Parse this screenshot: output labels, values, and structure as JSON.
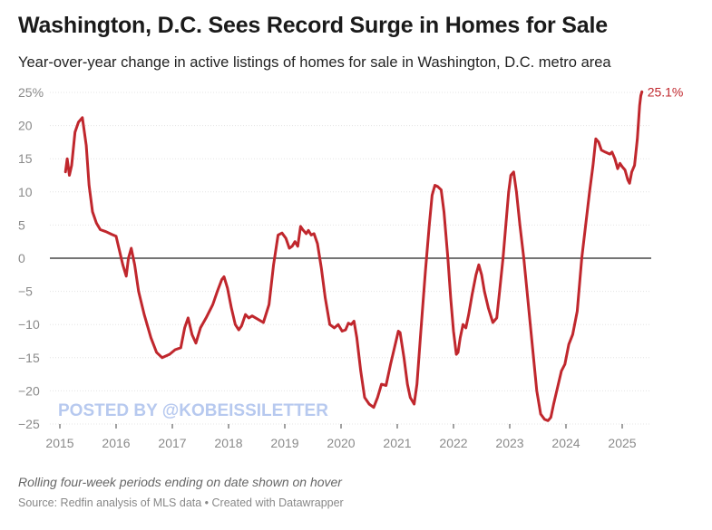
{
  "chart_data": {
    "type": "line",
    "title": "Washington, D.C. Sees Record Surge in Homes for Sale",
    "subtitle": "Year-over-year change in active listings of homes for sale in Washington, D.C. metro area",
    "note": "Rolling four-week periods ending on date shown on hover",
    "source": "Source: Redfin analysis of MLS data • Created with Datawrapper",
    "watermark": "POSTED BY @KOBEISSILETTER",
    "end_label": "25.1%",
    "line_color": "#c0272d",
    "xlim": [
      2014.95,
      2025.85
    ],
    "ylim": [
      -25,
      25
    ],
    "y_ticks": [
      {
        "value": 25,
        "label": "25%"
      },
      {
        "value": 20,
        "label": "20"
      },
      {
        "value": 15,
        "label": "15"
      },
      {
        "value": 10,
        "label": "10"
      },
      {
        "value": 5,
        "label": "5"
      },
      {
        "value": 0,
        "label": "0"
      },
      {
        "value": -5,
        "label": "−5"
      },
      {
        "value": -10,
        "label": "−10"
      },
      {
        "value": -15,
        "label": "−15"
      },
      {
        "value": -20,
        "label": "−20"
      },
      {
        "value": -25,
        "label": "−25"
      }
    ],
    "x_ticks": [
      {
        "value": 2015,
        "label": "2015"
      },
      {
        "value": 2016,
        "label": "2016"
      },
      {
        "value": 2017,
        "label": "2017"
      },
      {
        "value": 2018,
        "label": "2018"
      },
      {
        "value": 2019,
        "label": "2019"
      },
      {
        "value": 2020,
        "label": "2020"
      },
      {
        "value": 2021,
        "label": "2021"
      },
      {
        "value": 2022,
        "label": "2022"
      },
      {
        "value": 2023,
        "label": "2023"
      },
      {
        "value": 2024,
        "label": "2024"
      },
      {
        "value": 2025,
        "label": "2025"
      }
    ],
    "series": [
      {
        "name": "YoY change in active listings",
        "points": [
          [
            2015.1,
            13
          ],
          [
            2015.13,
            15
          ],
          [
            2015.17,
            12.5
          ],
          [
            2015.21,
            14
          ],
          [
            2015.27,
            19
          ],
          [
            2015.33,
            20.5
          ],
          [
            2015.4,
            21.2
          ],
          [
            2015.47,
            17
          ],
          [
            2015.52,
            11
          ],
          [
            2015.58,
            7
          ],
          [
            2015.65,
            5.3
          ],
          [
            2015.72,
            4.3
          ],
          [
            2015.82,
            4
          ],
          [
            2015.92,
            3.6
          ],
          [
            2016.0,
            3.3
          ],
          [
            2016.05,
            1.5
          ],
          [
            2016.12,
            -1
          ],
          [
            2016.18,
            -2.7
          ],
          [
            2016.22,
            0
          ],
          [
            2016.27,
            1.5
          ],
          [
            2016.33,
            -1
          ],
          [
            2016.4,
            -5
          ],
          [
            2016.5,
            -8.5
          ],
          [
            2016.62,
            -12
          ],
          [
            2016.72,
            -14.2
          ],
          [
            2016.82,
            -15
          ],
          [
            2016.95,
            -14.5
          ],
          [
            2017.05,
            -13.8
          ],
          [
            2017.15,
            -13.5
          ],
          [
            2017.22,
            -10.5
          ],
          [
            2017.28,
            -9
          ],
          [
            2017.35,
            -11.5
          ],
          [
            2017.42,
            -12.8
          ],
          [
            2017.5,
            -10.5
          ],
          [
            2017.6,
            -9
          ],
          [
            2017.72,
            -7
          ],
          [
            2017.8,
            -5
          ],
          [
            2017.88,
            -3.2
          ],
          [
            2017.92,
            -2.8
          ],
          [
            2017.98,
            -4.5
          ],
          [
            2018.05,
            -7.5
          ],
          [
            2018.12,
            -10
          ],
          [
            2018.18,
            -10.8
          ],
          [
            2018.23,
            -10.2
          ],
          [
            2018.3,
            -8.5
          ],
          [
            2018.36,
            -9
          ],
          [
            2018.42,
            -8.7
          ],
          [
            2018.52,
            -9.2
          ],
          [
            2018.62,
            -9.7
          ],
          [
            2018.72,
            -7
          ],
          [
            2018.8,
            -1
          ],
          [
            2018.88,
            3.5
          ],
          [
            2018.95,
            3.8
          ],
          [
            2019.02,
            3
          ],
          [
            2019.08,
            1.5
          ],
          [
            2019.13,
            1.8
          ],
          [
            2019.18,
            2.5
          ],
          [
            2019.23,
            1.8
          ],
          [
            2019.28,
            4.8
          ],
          [
            2019.32,
            4.3
          ],
          [
            2019.38,
            3.7
          ],
          [
            2019.42,
            4.2
          ],
          [
            2019.47,
            3.5
          ],
          [
            2019.52,
            3.7
          ],
          [
            2019.58,
            2.2
          ],
          [
            2019.65,
            -1.5
          ],
          [
            2019.72,
            -6
          ],
          [
            2019.8,
            -10
          ],
          [
            2019.88,
            -10.5
          ],
          [
            2019.95,
            -10
          ],
          [
            2020.02,
            -11
          ],
          [
            2020.08,
            -10.8
          ],
          [
            2020.13,
            -9.8
          ],
          [
            2020.18,
            -10
          ],
          [
            2020.23,
            -9.5
          ],
          [
            2020.28,
            -12
          ],
          [
            2020.35,
            -17
          ],
          [
            2020.42,
            -21
          ],
          [
            2020.5,
            -22
          ],
          [
            2020.58,
            -22.5
          ],
          [
            2020.65,
            -21
          ],
          [
            2020.72,
            -19
          ],
          [
            2020.8,
            -19.2
          ],
          [
            2020.88,
            -16
          ],
          [
            2020.95,
            -13.5
          ],
          [
            2021.02,
            -11
          ],
          [
            2021.05,
            -11.2
          ],
          [
            2021.12,
            -15
          ],
          [
            2021.18,
            -19
          ],
          [
            2021.23,
            -21
          ],
          [
            2021.3,
            -22
          ],
          [
            2021.35,
            -19
          ],
          [
            2021.42,
            -11
          ],
          [
            2021.5,
            -2
          ],
          [
            2021.57,
            5
          ],
          [
            2021.62,
            9.5
          ],
          [
            2021.67,
            11
          ],
          [
            2021.72,
            10.8
          ],
          [
            2021.78,
            10.3
          ],
          [
            2021.83,
            7
          ],
          [
            2021.9,
            0
          ],
          [
            2021.95,
            -6
          ],
          [
            2022.0,
            -11
          ],
          [
            2022.05,
            -14.5
          ],
          [
            2022.08,
            -14.2
          ],
          [
            2022.12,
            -12
          ],
          [
            2022.17,
            -10
          ],
          [
            2022.22,
            -10.5
          ],
          [
            2022.27,
            -8.5
          ],
          [
            2022.33,
            -5.5
          ],
          [
            2022.4,
            -2.5
          ],
          [
            2022.45,
            -1
          ],
          [
            2022.5,
            -2.5
          ],
          [
            2022.55,
            -5
          ],
          [
            2022.62,
            -7.5
          ],
          [
            2022.7,
            -9.7
          ],
          [
            2022.77,
            -9
          ],
          [
            2022.82,
            -5
          ],
          [
            2022.88,
            0
          ],
          [
            2022.93,
            5
          ],
          [
            2022.98,
            10
          ],
          [
            2023.02,
            12.5
          ],
          [
            2023.07,
            13
          ],
          [
            2023.12,
            10
          ],
          [
            2023.18,
            5
          ],
          [
            2023.25,
            0
          ],
          [
            2023.32,
            -6
          ],
          [
            2023.4,
            -13
          ],
          [
            2023.48,
            -20
          ],
          [
            2023.55,
            -23.5
          ],
          [
            2023.62,
            -24.3
          ],
          [
            2023.68,
            -24.5
          ],
          [
            2023.73,
            -24
          ],
          [
            2023.78,
            -22
          ],
          [
            2023.85,
            -19.5
          ],
          [
            2023.92,
            -17
          ],
          [
            2023.98,
            -16
          ],
          [
            2024.05,
            -13
          ],
          [
            2024.12,
            -11.5
          ],
          [
            2024.2,
            -8
          ],
          [
            2024.28,
            0
          ],
          [
            2024.35,
            5
          ],
          [
            2024.42,
            10
          ],
          [
            2024.48,
            14
          ],
          [
            2024.53,
            18
          ],
          [
            2024.58,
            17.5
          ],
          [
            2024.63,
            16.3
          ],
          [
            2024.7,
            16
          ],
          [
            2024.78,
            15.7
          ],
          [
            2024.82,
            16
          ],
          [
            2024.87,
            15
          ],
          [
            2024.92,
            13.5
          ],
          [
            2024.96,
            14.3
          ],
          [
            2025.0,
            13.8
          ],
          [
            2025.05,
            13.3
          ],
          [
            2025.1,
            11.8
          ],
          [
            2025.13,
            11.3
          ],
          [
            2025.17,
            13
          ],
          [
            2025.22,
            14
          ],
          [
            2025.27,
            18
          ],
          [
            2025.31,
            23
          ],
          [
            2025.33,
            24.5
          ],
          [
            2025.35,
            25.1
          ]
        ]
      }
    ]
  }
}
